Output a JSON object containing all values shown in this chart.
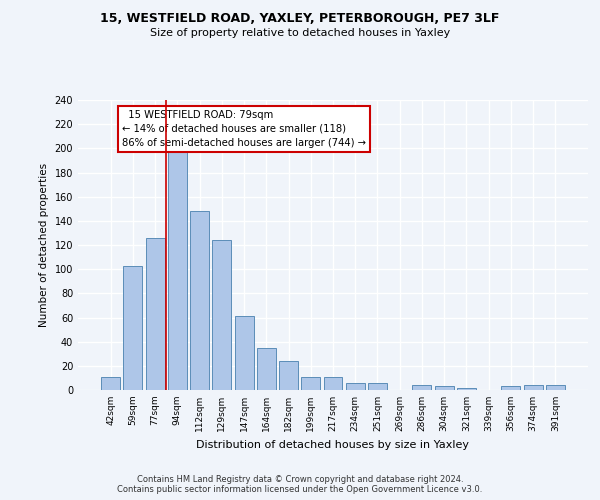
{
  "title1": "15, WESTFIELD ROAD, YAXLEY, PETERBOROUGH, PE7 3LF",
  "title2": "Size of property relative to detached houses in Yaxley",
  "xlabel": "Distribution of detached houses by size in Yaxley",
  "ylabel": "Number of detached properties",
  "bar_color": "#aec6e8",
  "bar_edge_color": "#5b8db8",
  "categories": [
    "42sqm",
    "59sqm",
    "77sqm",
    "94sqm",
    "112sqm",
    "129sqm",
    "147sqm",
    "164sqm",
    "182sqm",
    "199sqm",
    "217sqm",
    "234sqm",
    "251sqm",
    "269sqm",
    "286sqm",
    "304sqm",
    "321sqm",
    "339sqm",
    "356sqm",
    "374sqm",
    "391sqm"
  ],
  "values": [
    11,
    103,
    126,
    197,
    148,
    124,
    61,
    35,
    24,
    11,
    11,
    6,
    6,
    0,
    4,
    3,
    2,
    0,
    3,
    4,
    4
  ],
  "ylim": [
    0,
    240
  ],
  "yticks": [
    0,
    20,
    40,
    60,
    80,
    100,
    120,
    140,
    160,
    180,
    200,
    220,
    240
  ],
  "property_line_x": 2.5,
  "annotation_text": "  15 WESTFIELD ROAD: 79sqm  \n← 14% of detached houses are smaller (118)\n86% of semi-detached houses are larger (744) →",
  "annotation_box_color": "#ffffff",
  "annotation_box_edge_color": "#cc0000",
  "vline_color": "#cc0000",
  "footnote": "Contains HM Land Registry data © Crown copyright and database right 2024.\nContains public sector information licensed under the Open Government Licence v3.0.",
  "bg_color": "#f0f4fa",
  "grid_color": "#ffffff"
}
